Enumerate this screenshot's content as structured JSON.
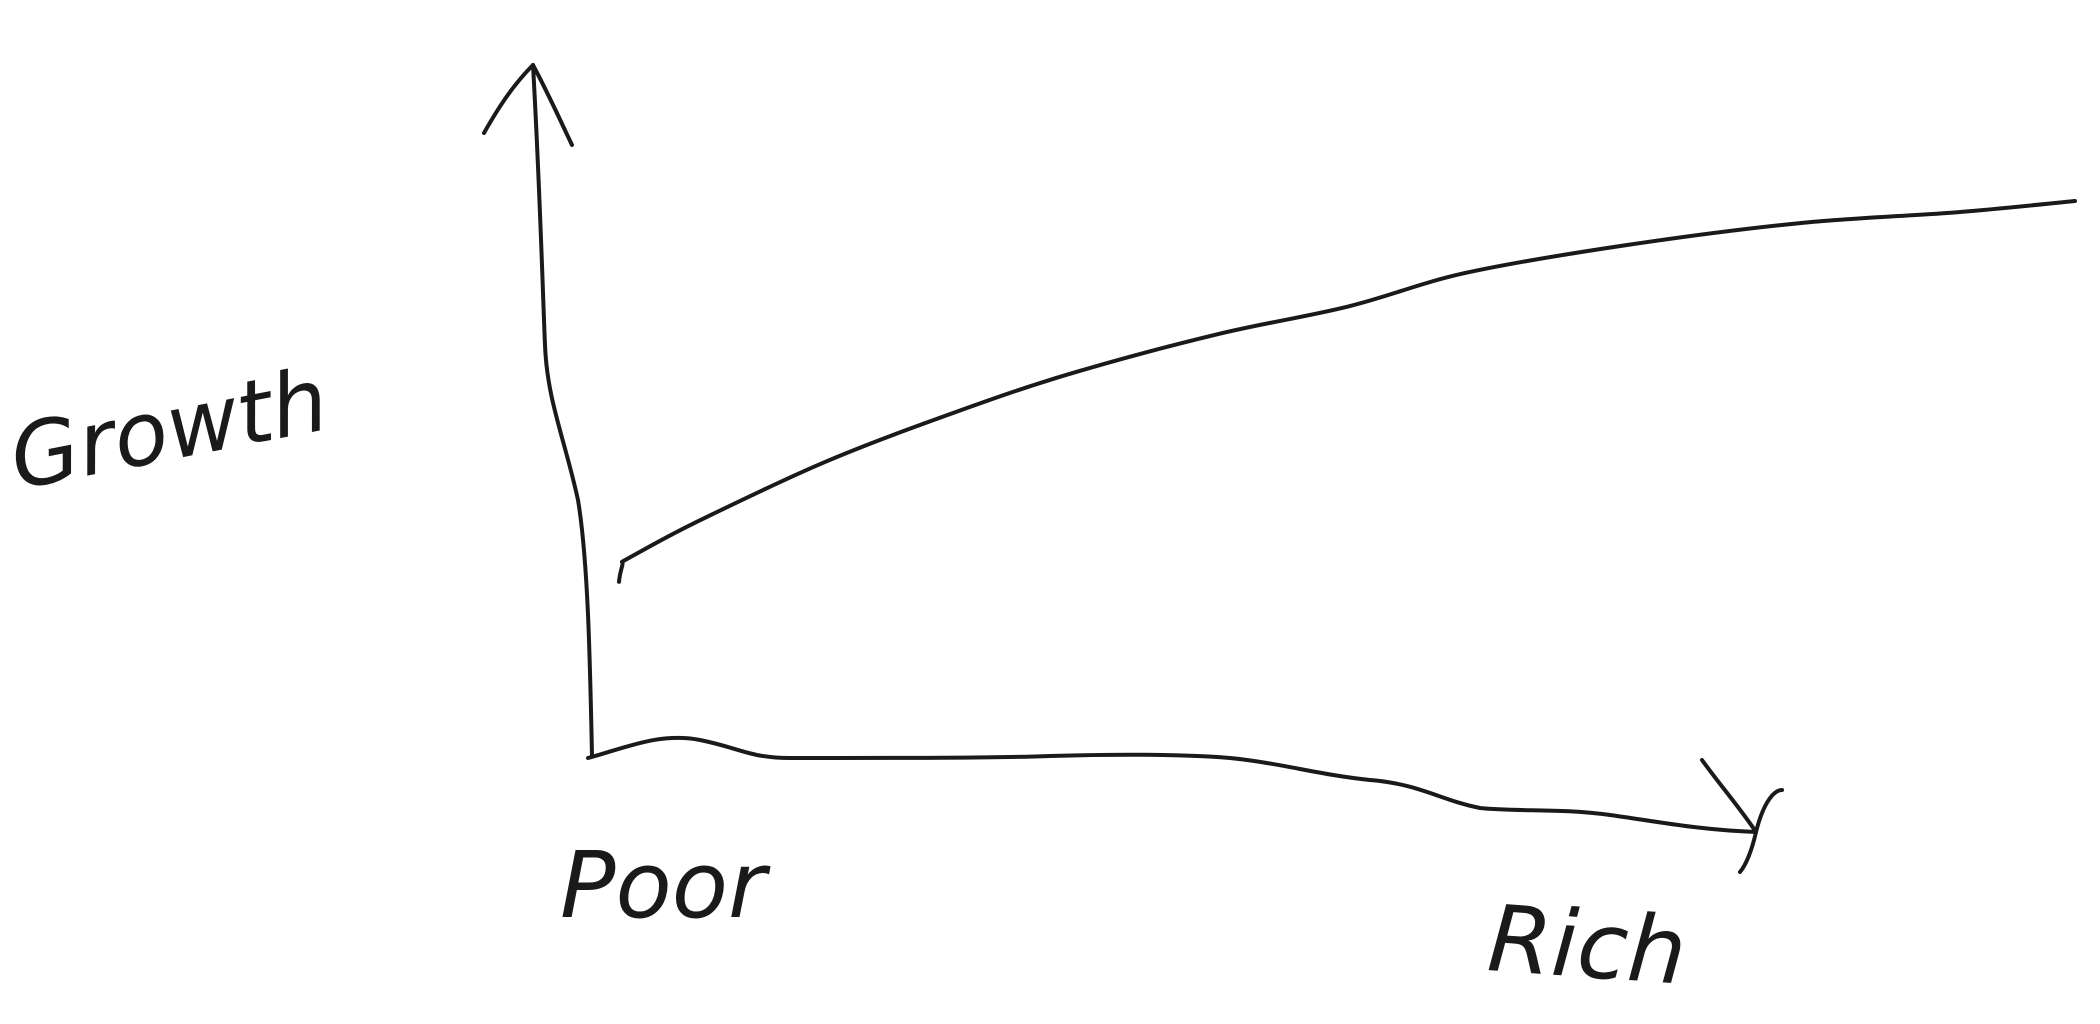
{
  "chart_data": {
    "type": "line",
    "style": "hand-drawn sketch",
    "ylabel": "Growth",
    "x_tick_labels": [
      "Poor",
      "Rich"
    ],
    "grid": false,
    "legend": "none",
    "series": [
      {
        "shape": "concave increasing curve",
        "x": [
          0.0,
          0.05,
          0.14,
          0.23,
          0.31,
          0.41,
          0.5,
          0.58,
          0.69,
          0.81,
          0.92,
          1.0
        ],
        "y": [
          0.35,
          0.42,
          0.53,
          0.62,
          0.69,
          0.76,
          0.81,
          0.87,
          0.92,
          0.96,
          0.98,
          1.0
        ]
      }
    ],
    "xlim": [
      0,
      1
    ],
    "ylim": [
      0,
      1.1
    ]
  },
  "colors": {
    "background": "#ffffff",
    "ink": "#1a1a1a"
  }
}
